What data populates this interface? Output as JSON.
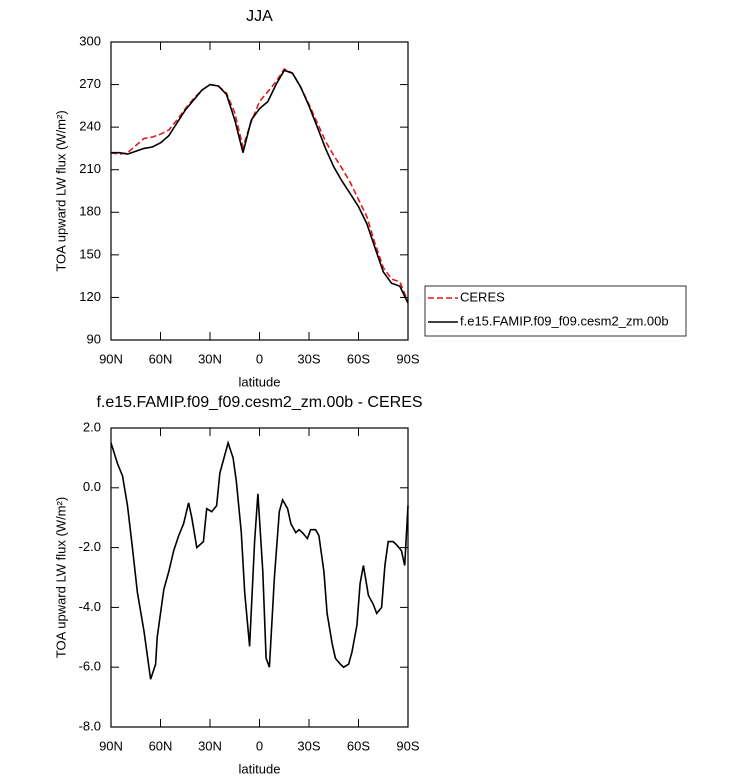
{
  "chart_data": [
    {
      "type": "line",
      "title": "JJA",
      "x_label": "latitude",
      "y_label": "TOA upward LW flux (W/m²)",
      "x": [
        90,
        85,
        80,
        75,
        70,
        65,
        60,
        55,
        50,
        45,
        40,
        35,
        30,
        25,
        20,
        15,
        10,
        5,
        0,
        -5,
        -10,
        -15,
        -20,
        -25,
        -30,
        -35,
        -40,
        -45,
        -50,
        -55,
        -60,
        -65,
        -70,
        -75,
        -80,
        -85,
        -90
      ],
      "series": [
        {
          "name": "CERES",
          "color": "#e31a1c",
          "dashed": true,
          "values": [
            222,
            221,
            222,
            227,
            232,
            233,
            235,
            238,
            245,
            253,
            260,
            266,
            270,
            269,
            264,
            250,
            226,
            244,
            258,
            265,
            272,
            281,
            278,
            268,
            256,
            243,
            230,
            220,
            211,
            201,
            189,
            177,
            158,
            141,
            133,
            131,
            117
          ]
        },
        {
          "name": "f.e15.FAMIP.f09_f09.cesm2_zm.00b",
          "color": "#000000",
          "dashed": false,
          "values": [
            222,
            222,
            221,
            223,
            225,
            226,
            229,
            234,
            243,
            252,
            259,
            266,
            270,
            269,
            263,
            245,
            222,
            245,
            253,
            258,
            270,
            280,
            278,
            268,
            255,
            240,
            225,
            212,
            202,
            193,
            184,
            172,
            155,
            138,
            130,
            128,
            116
          ]
        }
      ],
      "xlim": [
        90,
        -90
      ],
      "xticks": [
        {
          "value": 90,
          "label": "90N"
        },
        {
          "value": 60,
          "label": "60N"
        },
        {
          "value": 30,
          "label": "30N"
        },
        0,
        {
          "value": -30,
          "label": "30S"
        },
        {
          "value": -60,
          "label": "60S"
        },
        {
          "value": -90,
          "label": "90S"
        }
      ],
      "ylim": [
        90,
        300
      ],
      "yticks": [
        90,
        120,
        150,
        180,
        210,
        240,
        270,
        300
      ],
      "legend": "right"
    },
    {
      "type": "line",
      "title": "f.e15.FAMIP.f09_f09.cesm2_zm.00b - CERES",
      "x_label": "latitude",
      "y_label": "TOA upward LW flux (W/m²)",
      "x": [
        90,
        86,
        83,
        80,
        77,
        74,
        70,
        66,
        63,
        62,
        58,
        55,
        52,
        49,
        46,
        43,
        41,
        38,
        34,
        32,
        29,
        26,
        24,
        19,
        16,
        14,
        11,
        9,
        6,
        3,
        1,
        -2,
        -4,
        -6,
        -9,
        -12,
        -14,
        -17,
        -19,
        -22,
        -24,
        -26,
        -29,
        -31,
        -34,
        -36,
        -39,
        -41,
        -44,
        -46,
        -49,
        -51,
        -54,
        -56,
        -59,
        -61,
        -63,
        -66,
        -69,
        -71,
        -74,
        -76,
        -78,
        -81,
        -83,
        -86,
        -88,
        -90
      ],
      "values": [
        1.5,
        0.8,
        0.4,
        -0.6,
        -2.0,
        -3.5,
        -4.8,
        -6.4,
        -5.9,
        -5.0,
        -3.4,
        -2.8,
        -2.1,
        -1.6,
        -1.2,
        -0.5,
        -1.0,
        -2.0,
        -1.8,
        -0.7,
        -0.8,
        -0.6,
        0.5,
        1.5,
        1.0,
        0.2,
        -1.5,
        -3.5,
        -5.3,
        -1.8,
        -0.2,
        -2.8,
        -5.7,
        -6.0,
        -3.0,
        -0.8,
        -0.4,
        -0.7,
        -1.2,
        -1.5,
        -1.4,
        -1.5,
        -1.7,
        -1.4,
        -1.4,
        -1.6,
        -2.8,
        -4.2,
        -5.2,
        -5.7,
        -5.9,
        -6.0,
        -5.9,
        -5.5,
        -4.6,
        -3.2,
        -2.6,
        -3.6,
        -3.9,
        -4.2,
        -4.0,
        -2.6,
        -1.8,
        -1.8,
        -1.9,
        -2.1,
        -2.6,
        -0.6
      ],
      "color": "#000000",
      "xlim": [
        90,
        -90
      ],
      "xticks": [
        {
          "value": 90,
          "label": "90N"
        },
        {
          "value": 60,
          "label": "60N"
        },
        {
          "value": 30,
          "label": "30N"
        },
        0,
        {
          "value": -30,
          "label": "30S"
        },
        {
          "value": -60,
          "label": "60S"
        },
        {
          "value": -90,
          "label": "90S"
        }
      ],
      "ylim": [
        -8,
        2
      ],
      "yticks": [
        {
          "value": -8,
          "label": "-8.0"
        },
        {
          "value": -6,
          "label": "-6.0"
        },
        {
          "value": -4,
          "label": "-4.0"
        },
        {
          "value": -2,
          "label": "-2.0"
        },
        {
          "value": 0,
          "label": "0.0"
        },
        {
          "value": 2,
          "label": "2.0"
        }
      ]
    }
  ]
}
